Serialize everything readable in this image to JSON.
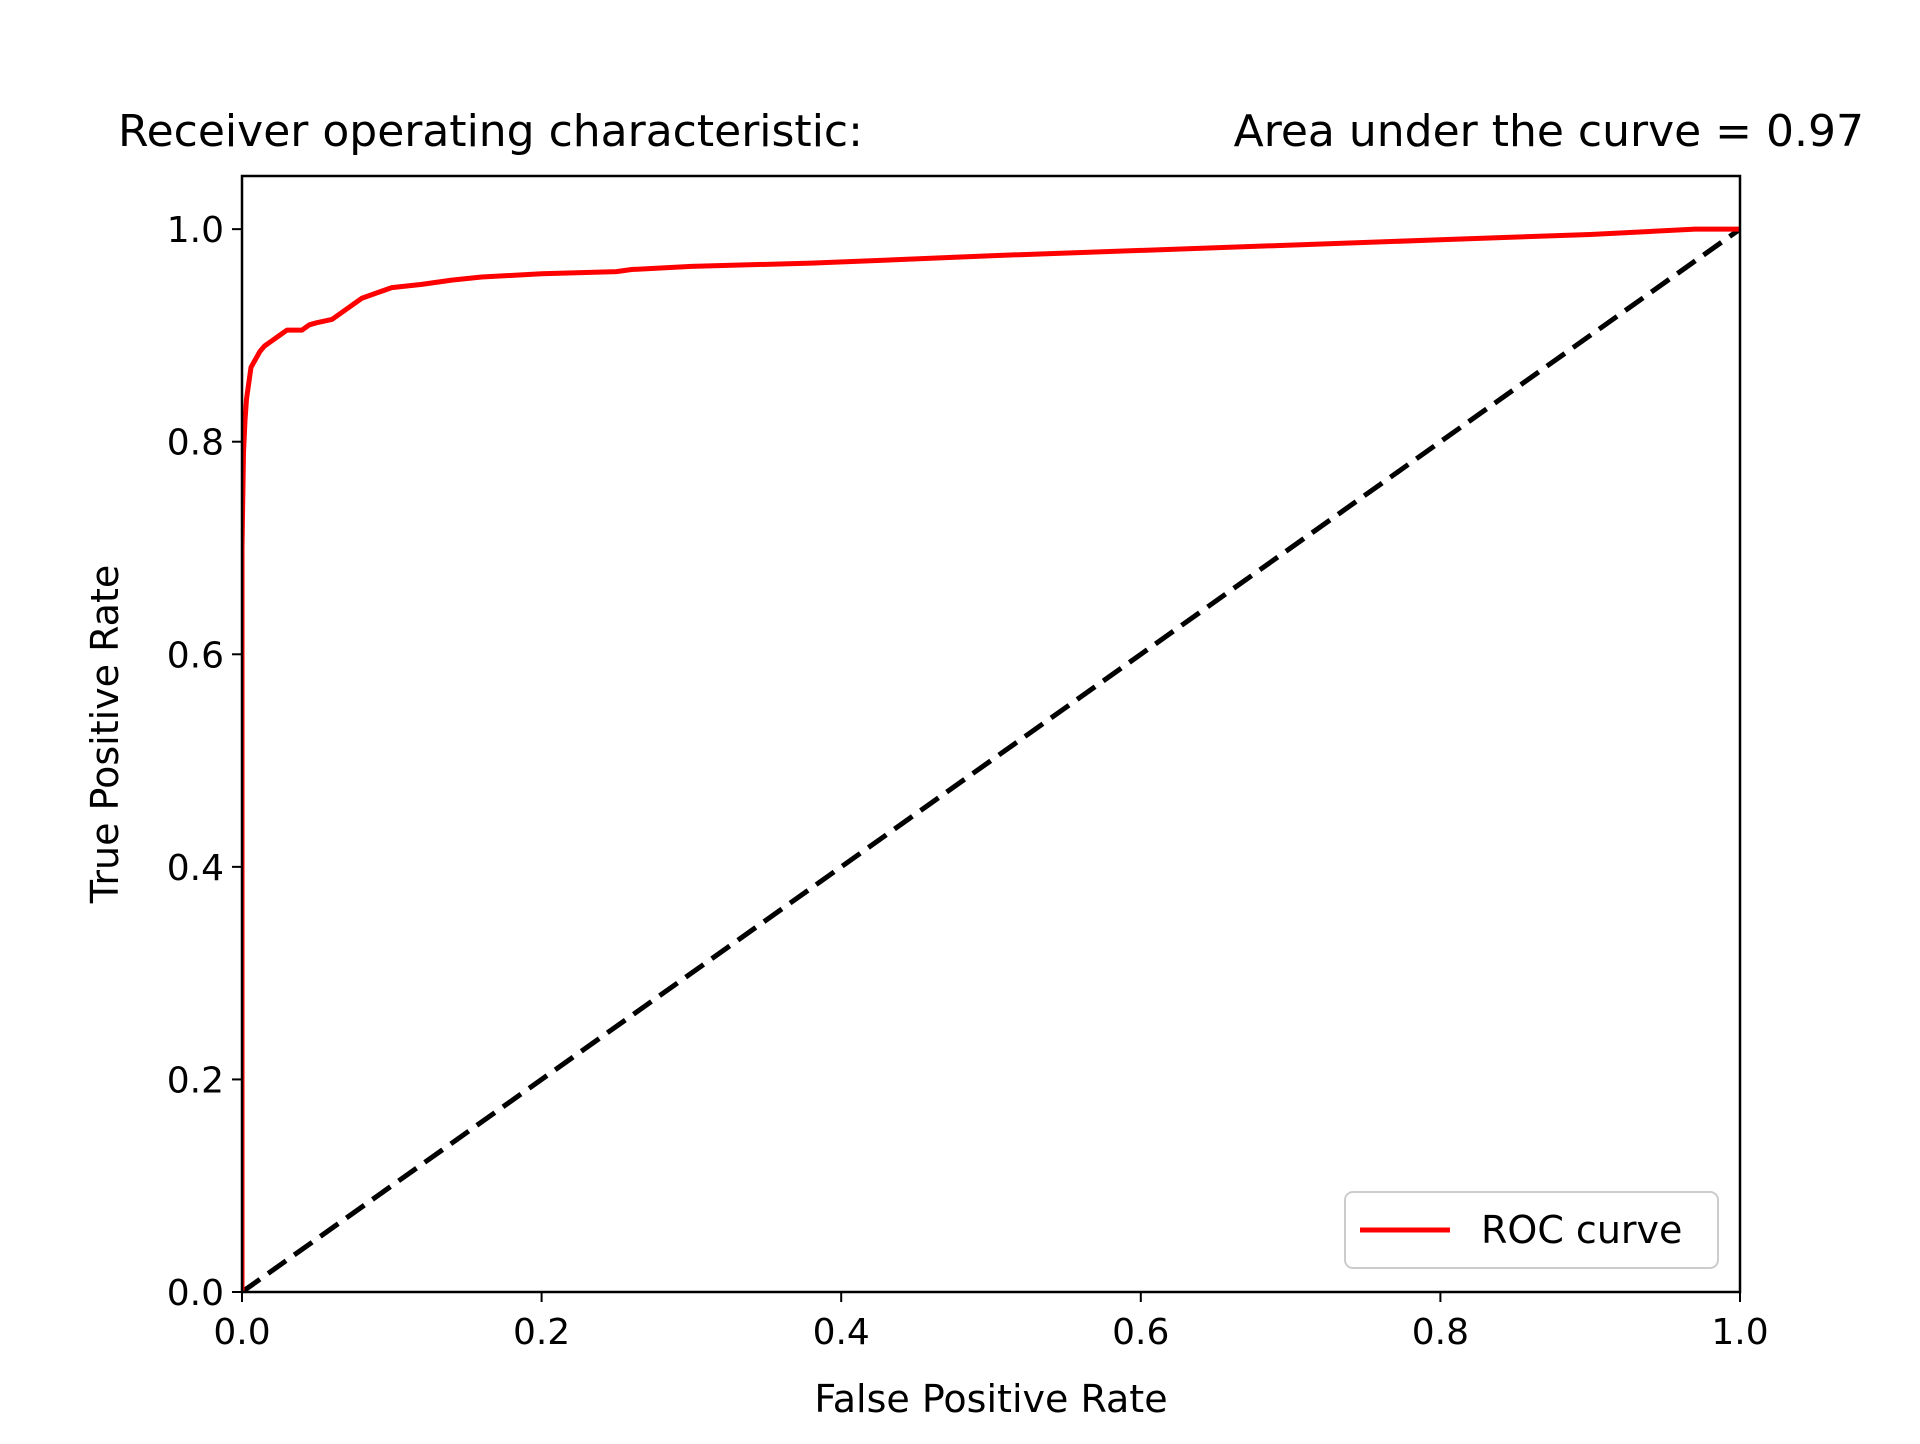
{
  "chart_data": {
    "type": "line",
    "title_left": "Receiver operating characteristic:",
    "title_right": "Area under the curve = 0.97",
    "xlabel": "False Positive Rate",
    "ylabel": "True Positive Rate",
    "xlim": [
      0.0,
      1.0
    ],
    "ylim": [
      0.0,
      1.05
    ],
    "xticks": [
      "0.0",
      "0.2",
      "0.4",
      "0.6",
      "0.8",
      "1.0"
    ],
    "yticks": [
      "0.0",
      "0.2",
      "0.4",
      "0.6",
      "0.8",
      "1.0"
    ],
    "grid": false,
    "legend_position": "lower-right",
    "series": [
      {
        "name": "ROC curve",
        "color": "#ff0000",
        "style": "solid",
        "x": [
          0.0,
          0.0,
          0.001,
          0.002,
          0.003,
          0.004,
          0.005,
          0.006,
          0.008,
          0.01,
          0.012,
          0.015,
          0.02,
          0.025,
          0.03,
          0.04,
          0.045,
          0.05,
          0.06,
          0.07,
          0.075,
          0.08,
          0.09,
          0.1,
          0.12,
          0.14,
          0.16,
          0.2,
          0.25,
          0.26,
          0.3,
          0.38,
          0.45,
          0.5,
          0.6,
          0.7,
          0.8,
          0.9,
          0.97,
          1.0
        ],
        "y": [
          0.0,
          0.7,
          0.79,
          0.82,
          0.84,
          0.85,
          0.86,
          0.87,
          0.875,
          0.88,
          0.885,
          0.89,
          0.895,
          0.9,
          0.905,
          0.905,
          0.91,
          0.912,
          0.915,
          0.925,
          0.93,
          0.935,
          0.94,
          0.945,
          0.948,
          0.952,
          0.955,
          0.958,
          0.96,
          0.962,
          0.965,
          0.968,
          0.972,
          0.975,
          0.98,
          0.985,
          0.99,
          0.995,
          1.0,
          1.0
        ]
      },
      {
        "name": "",
        "color": "#000000",
        "style": "dashed",
        "x": [
          0.0,
          1.0
        ],
        "y": [
          0.0,
          1.0
        ]
      }
    ]
  }
}
